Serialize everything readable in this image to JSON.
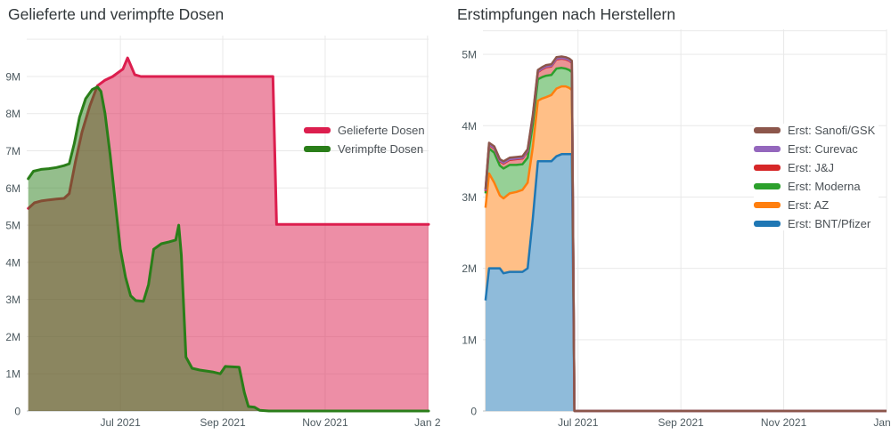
{
  "page": {
    "background": "#ffffff"
  },
  "chart_data": [
    {
      "type": "area",
      "stacking": "overlay",
      "title": "Gelieferte und verimpfte Dosen",
      "x_axis": {
        "range": [
          -0.83,
          7.02
        ],
        "ticks": [
          {
            "value": 1,
            "label": "Jul 2021"
          },
          {
            "value": 3,
            "label": "Sep 2021"
          },
          {
            "value": 5,
            "label": "Nov 2021"
          },
          {
            "value": 7,
            "label": "Jan 2"
          }
        ]
      },
      "y_axis": {
        "range": [
          0,
          10.1
        ],
        "ticks": [
          {
            "value": 0,
            "label": "0"
          },
          {
            "value": 1,
            "label": "1M"
          },
          {
            "value": 2,
            "label": "2M"
          },
          {
            "value": 3,
            "label": "3M"
          },
          {
            "value": 4,
            "label": "4M"
          },
          {
            "value": 5,
            "label": "5M"
          },
          {
            "value": 6,
            "label": "6M"
          },
          {
            "value": 7,
            "label": "7M"
          },
          {
            "value": 8,
            "label": "8M"
          },
          {
            "value": 9,
            "label": "9M"
          }
        ],
        "extra_gridlines": [
          10
        ]
      },
      "series": [
        {
          "name": "Gelieferte Dosen",
          "color": "#dc1e4e",
          "x": [
            -0.8,
            -0.68,
            -0.55,
            -0.4,
            -0.25,
            -0.1,
            0.0,
            0.12,
            0.25,
            0.4,
            0.55,
            0.7,
            0.85,
            1.0,
            1.05,
            1.14,
            1.28,
            1.4,
            3.98,
            4.05,
            7.02
          ],
          "y": [
            5.45,
            5.6,
            5.65,
            5.68,
            5.7,
            5.72,
            5.85,
            6.7,
            7.5,
            8.2,
            8.75,
            8.9,
            9.0,
            9.15,
            9.2,
            9.5,
            9.05,
            9.0,
            9.0,
            5.02,
            5.02
          ]
        },
        {
          "name": "Verimpfte Dosen",
          "color": "#2a7e19",
          "x": [
            -0.8,
            -0.7,
            -0.55,
            -0.4,
            -0.25,
            -0.1,
            0.0,
            0.1,
            0.2,
            0.32,
            0.45,
            0.55,
            0.62,
            0.7,
            0.8,
            0.9,
            1.0,
            1.1,
            1.2,
            1.3,
            1.45,
            1.55,
            1.65,
            1.8,
            1.95,
            2.08,
            2.14,
            2.19,
            2.28,
            2.4,
            2.55,
            2.8,
            2.95,
            3.05,
            3.32,
            3.42,
            3.5,
            3.62,
            3.72,
            3.9,
            7.02
          ],
          "y": [
            6.25,
            6.45,
            6.5,
            6.52,
            6.55,
            6.6,
            6.65,
            7.2,
            7.9,
            8.4,
            8.65,
            8.72,
            8.6,
            8.0,
            6.9,
            5.6,
            4.35,
            3.6,
            3.1,
            2.97,
            2.95,
            3.4,
            4.35,
            4.5,
            4.55,
            4.6,
            5.0,
            4.2,
            1.45,
            1.15,
            1.1,
            1.05,
            1.0,
            1.2,
            1.18,
            0.5,
            0.12,
            0.1,
            0.02,
            0.0,
            0.0
          ]
        }
      ]
    },
    {
      "type": "area",
      "stacking": "stacked",
      "title": "Erstimpfungen nach Herstellern",
      "x_axis": {
        "range": [
          -0.85,
          7.0
        ],
        "ticks": [
          {
            "value": 1,
            "label": "Jul 2021"
          },
          {
            "value": 3,
            "label": "Sep 2021"
          },
          {
            "value": 5,
            "label": "Nov 2021"
          },
          {
            "value": 7,
            "label": "Jan 2"
          }
        ]
      },
      "y_axis": {
        "range": [
          0,
          5.35
        ],
        "ticks": [
          {
            "value": 0,
            "label": "0"
          },
          {
            "value": 1,
            "label": "1M"
          },
          {
            "value": 2,
            "label": "2M"
          },
          {
            "value": 3,
            "label": "3M"
          },
          {
            "value": 4,
            "label": "4M"
          },
          {
            "value": 5,
            "label": "5M"
          }
        ],
        "extra_gridlines": [
          5.33
        ]
      },
      "x": [
        -0.8,
        -0.73,
        -0.63,
        -0.52,
        -0.45,
        -0.33,
        -0.2,
        -0.08,
        0.02,
        0.12,
        0.22,
        0.3,
        0.38,
        0.48,
        0.58,
        0.68,
        0.76,
        0.83,
        0.88,
        0.93,
        1.05,
        7.0
      ],
      "series": [
        {
          "name": "Erst: BNT/Pfizer",
          "color": "#1f77b4",
          "y": [
            1.55,
            2.0,
            2.0,
            2.0,
            1.93,
            1.95,
            1.95,
            1.95,
            2.0,
            2.7,
            3.5,
            3.5,
            3.5,
            3.5,
            3.57,
            3.6,
            3.6,
            3.6,
            3.6,
            0,
            0,
            0
          ]
        },
        {
          "name": "Erst: AZ",
          "color": "#ff7f0e",
          "y": [
            1.3,
            1.33,
            1.2,
            1.02,
            1.05,
            1.1,
            1.12,
            1.15,
            1.2,
            1.0,
            0.85,
            0.88,
            0.9,
            0.93,
            0.95,
            0.95,
            0.95,
            0.93,
            0.9,
            0,
            0,
            0
          ]
        },
        {
          "name": "Erst: Moderna",
          "color": "#2ca02c",
          "y": [
            0.2,
            0.35,
            0.42,
            0.42,
            0.42,
            0.4,
            0.38,
            0.36,
            0.35,
            0.32,
            0.3,
            0.3,
            0.3,
            0.28,
            0.28,
            0.26,
            0.25,
            0.25,
            0.25,
            0,
            0,
            0
          ]
        },
        {
          "name": "Erst: J&J",
          "color": "#d62728",
          "y": [
            0.03,
            0.05,
            0.06,
            0.06,
            0.07,
            0.07,
            0.08,
            0.08,
            0.09,
            0.1,
            0.1,
            0.11,
            0.12,
            0.12,
            0.13,
            0.13,
            0.13,
            0.13,
            0.13,
            0,
            0,
            0
          ]
        },
        {
          "name": "Erst: Curevac",
          "color": "#9467bd",
          "y": [
            0.01,
            0.01,
            0.01,
            0.01,
            0.01,
            0.01,
            0.01,
            0.01,
            0.01,
            0.01,
            0.01,
            0.01,
            0.01,
            0.01,
            0.01,
            0.01,
            0.01,
            0.01,
            0.01,
            0,
            0,
            0
          ]
        },
        {
          "name": "Erst: Sanofi/GSK",
          "color": "#8c564b",
          "y": [
            0.02,
            0.02,
            0.02,
            0.02,
            0.02,
            0.02,
            0.02,
            0.02,
            0.02,
            0.02,
            0.02,
            0.02,
            0.02,
            0.02,
            0.02,
            0.02,
            0.02,
            0.02,
            0.02,
            0,
            0,
            0
          ]
        }
      ]
    }
  ]
}
